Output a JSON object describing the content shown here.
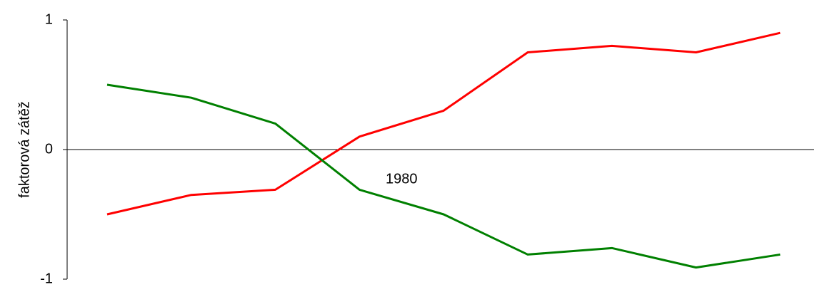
{
  "chart_data": {
    "type": "line",
    "y_label": "faktorová zátěž",
    "annotation": "1980",
    "categories": [
      null,
      null,
      null,
      null,
      null,
      null,
      null,
      null,
      null
    ],
    "series": [
      {
        "color": "#ff0000",
        "values": [
          -0.5,
          -0.35,
          -0.31,
          0.1,
          0.3,
          0.75,
          0.8,
          0.75,
          0.9
        ]
      },
      {
        "color": "#008000",
        "values": [
          0.5,
          0.4,
          0.2,
          -0.31,
          -0.5,
          -0.81,
          -0.76,
          -0.91,
          -0.81
        ]
      }
    ],
    "ylim": [
      -1,
      1
    ],
    "yticks": [
      -1,
      0,
      1
    ]
  }
}
